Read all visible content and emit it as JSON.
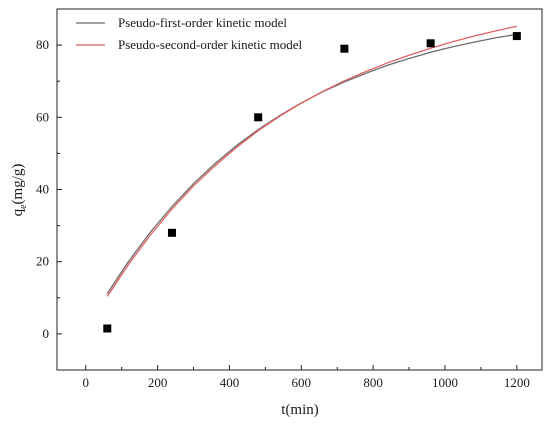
{
  "chart_data": {
    "type": "scatter",
    "xlabel": "t(min)",
    "ylabel_main": "q",
    "ylabel_sub": "e",
    "ylabel_unit": "(mg/g)",
    "xlim": [
      -80,
      1270
    ],
    "ylim": [
      -10,
      90
    ],
    "xticks": [
      0,
      200,
      400,
      600,
      800,
      1000,
      1200
    ],
    "yticks": [
      0,
      20,
      40,
      60,
      80
    ],
    "grid": false,
    "legend_position": "top-left",
    "points": {
      "color": "#000000",
      "x": [
        60,
        240,
        480,
        720,
        960,
        1200
      ],
      "y": [
        1.5,
        28,
        60,
        79,
        80.5,
        82.5
      ]
    },
    "series": [
      {
        "name": "Pseudo-first-order kinetic model",
        "color": "#6b6b6b",
        "x": [
          60,
          120,
          180,
          240,
          300,
          360,
          420,
          480,
          540,
          600,
          660,
          720,
          780,
          840,
          900,
          960,
          1020,
          1080,
          1140,
          1200
        ],
        "y": [
          11.2,
          20.2,
          28.2,
          35.3,
          41.6,
          47.2,
          52.2,
          56.6,
          60.5,
          64.0,
          67.1,
          69.8,
          72.2,
          74.4,
          76.3,
          78.0,
          79.5,
          80.8,
          82.0,
          83.0
        ]
      },
      {
        "name": "Pseudo-second-order kinetic model",
        "color": "#e06060",
        "x": [
          60,
          120,
          180,
          240,
          300,
          360,
          420,
          480,
          540,
          600,
          660,
          720,
          780,
          840,
          900,
          960,
          1020,
          1080,
          1140,
          1200
        ],
        "y": [
          10.4,
          19.4,
          27.4,
          34.6,
          41.0,
          46.6,
          51.7,
          56.3,
          60.3,
          63.9,
          67.2,
          70.1,
          72.7,
          75.1,
          77.2,
          79.1,
          80.9,
          82.5,
          83.9,
          85.2
        ]
      }
    ]
  }
}
